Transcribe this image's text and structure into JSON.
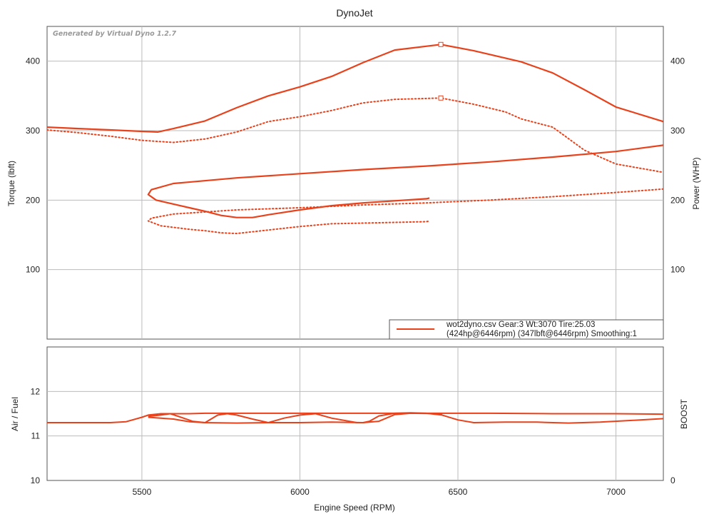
{
  "chart_data": [
    {
      "type": "line",
      "title": "DynoJet",
      "watermark": "Generated by Virtual Dyno 1.2.7",
      "xlabel": "Engine Speed (RPM)",
      "ylabel": "Torque (lbft)",
      "y2label": "Power (WHP)",
      "xlim": [
        5200,
        7150
      ],
      "ylim": [
        0,
        450
      ],
      "y2lim": [
        0,
        450
      ],
      "x_ticks": [
        5500,
        6000,
        6500,
        7000
      ],
      "y_ticks": [
        100,
        200,
        300,
        400
      ],
      "y2_ticks": [
        100,
        200,
        300,
        400
      ],
      "grid": true,
      "color": "#e8421c",
      "legend": {
        "position": "bottom-right",
        "line1": "wot2dyno.csv Gear:3 Wt:3070 Tire:25.03",
        "line2": "(424hp@6446rpm) (347lbft@6446rpm) Smoothing:1"
      },
      "series": [
        {
          "style": "solid",
          "axis": "power",
          "points": [
            [
              7150,
              279
            ],
            [
              7000,
              270
            ],
            [
              6800,
              262
            ],
            [
              6600,
              255
            ],
            [
              6400,
              249
            ],
            [
              6200,
              244
            ],
            [
              6000,
              238
            ],
            [
              5800,
              232
            ],
            [
              5600,
              224
            ],
            [
              5530,
              215
            ],
            [
              5520,
              208
            ],
            [
              5545,
              200
            ],
            [
              5650,
              189
            ],
            [
              5700,
              184
            ],
            [
              5750,
              178
            ],
            [
              5800,
              175
            ],
            [
              5850,
              175
            ],
            [
              5900,
              179
            ],
            [
              6000,
              186
            ],
            [
              6100,
              192
            ],
            [
              6200,
              196
            ],
            [
              6300,
              199
            ],
            [
              6400,
              202
            ],
            [
              6410,
              203
            ]
          ]
        },
        {
          "style": "dotted",
          "axis": "torque",
          "points": [
            [
              7150,
              216
            ],
            [
              7000,
              211
            ],
            [
              6800,
              205
            ],
            [
              6600,
              200
            ],
            [
              6400,
              196
            ],
            [
              6200,
              193
            ],
            [
              6000,
              189
            ],
            [
              5800,
              186
            ],
            [
              5600,
              180
            ],
            [
              5530,
              174
            ],
            [
              5520,
              170
            ],
            [
              5560,
              163
            ],
            [
              5650,
              158
            ],
            [
              5700,
              156
            ],
            [
              5750,
              153
            ],
            [
              5800,
              152
            ],
            [
              5900,
              157
            ],
            [
              6000,
              162
            ],
            [
              6100,
              166
            ],
            [
              6200,
              167
            ],
            [
              6300,
              168
            ],
            [
              6400,
              169
            ],
            [
              6410,
              170
            ]
          ]
        },
        {
          "style": "solid",
          "axis": "power",
          "marker_at": 6446,
          "points": [
            [
              5200,
              305
            ],
            [
              5300,
              303
            ],
            [
              5400,
              301
            ],
            [
              5500,
              299
            ],
            [
              5550,
              298
            ],
            [
              5600,
              303
            ],
            [
              5700,
              314
            ],
            [
              5800,
              333
            ],
            [
              5900,
              350
            ],
            [
              6000,
              363
            ],
            [
              6100,
              378
            ],
            [
              6200,
              398
            ],
            [
              6300,
              416
            ],
            [
              6446,
              424
            ],
            [
              6550,
              415
            ],
            [
              6700,
              399
            ],
            [
              6800,
              383
            ],
            [
              6900,
              359
            ],
            [
              7000,
              334
            ],
            [
              7150,
              313
            ]
          ]
        },
        {
          "style": "dotted",
          "axis": "torque",
          "marker_at": 6446,
          "points": [
            [
              5200,
              301
            ],
            [
              5300,
              297
            ],
            [
              5400,
              292
            ],
            [
              5500,
              286
            ],
            [
              5600,
              283
            ],
            [
              5700,
              288
            ],
            [
              5800,
              298
            ],
            [
              5900,
              313
            ],
            [
              6000,
              320
            ],
            [
              6100,
              329
            ],
            [
              6200,
              340
            ],
            [
              6300,
              345
            ],
            [
              6446,
              347
            ],
            [
              6550,
              338
            ],
            [
              6650,
              327
            ],
            [
              6700,
              317
            ],
            [
              6800,
              305
            ],
            [
              6900,
              272
            ],
            [
              7000,
              252
            ],
            [
              7150,
              240
            ]
          ]
        }
      ]
    },
    {
      "type": "line",
      "ylabel": "Air / Fuel",
      "y2label": "BOOST",
      "xlim": [
        5200,
        7150
      ],
      "ylim": [
        10,
        13
      ],
      "y_ticks": [
        10,
        11,
        12
      ],
      "y2_ticks": [
        0
      ],
      "grid": true,
      "color": "#e8421c",
      "series": [
        {
          "style": "solid",
          "points": [
            [
              5200,
              11.3
            ],
            [
              5300,
              11.3
            ],
            [
              5400,
              11.3
            ],
            [
              5450,
              11.32
            ],
            [
              5500,
              11.42
            ],
            [
              5520,
              11.47
            ],
            [
              5560,
              11.5
            ],
            [
              5600,
              11.5
            ],
            [
              5650,
              11.5
            ],
            [
              5700,
              11.51
            ],
            [
              5800,
              11.51
            ],
            [
              6000,
              11.51
            ],
            [
              6200,
              11.51
            ],
            [
              6400,
              11.51
            ],
            [
              6600,
              11.51
            ],
            [
              6800,
              11.5
            ],
            [
              7000,
              11.5
            ],
            [
              7150,
              11.49
            ]
          ]
        },
        {
          "style": "solid",
          "points": [
            [
              7150,
              11.39
            ],
            [
              7050,
              11.35
            ],
            [
              6950,
              11.31
            ],
            [
              6850,
              11.29
            ],
            [
              6750,
              11.31
            ],
            [
              6650,
              11.31
            ],
            [
              6550,
              11.3
            ],
            [
              6500,
              11.36
            ],
            [
              6450,
              11.47
            ],
            [
              6400,
              11.51
            ],
            [
              6350,
              11.52
            ],
            [
              6300,
              11.51
            ],
            [
              6250,
              11.45
            ],
            [
              6220,
              11.33
            ],
            [
              6200,
              11.3
            ],
            [
              6180,
              11.3
            ],
            [
              6100,
              11.4
            ],
            [
              6050,
              11.5
            ],
            [
              6000,
              11.47
            ],
            [
              5950,
              11.4
            ],
            [
              5900,
              11.3
            ],
            [
              5850,
              11.38
            ],
            [
              5800,
              11.47
            ],
            [
              5770,
              11.5
            ],
            [
              5740,
              11.47
            ],
            [
              5700,
              11.3
            ],
            [
              5660,
              11.33
            ],
            [
              5620,
              11.43
            ],
            [
              5590,
              11.5
            ],
            [
              5560,
              11.47
            ],
            [
              5520,
              11.44
            ]
          ]
        },
        {
          "style": "solid",
          "points": [
            [
              5520,
              11.42
            ],
            [
              5600,
              11.38
            ],
            [
              5650,
              11.32
            ],
            [
              5700,
              11.3
            ],
            [
              5800,
              11.29
            ],
            [
              5900,
              11.3
            ],
            [
              6000,
              11.3
            ],
            [
              6100,
              11.31
            ],
            [
              6200,
              11.3
            ],
            [
              6250,
              11.33
            ],
            [
              6300,
              11.48
            ],
            [
              6350,
              11.51
            ],
            [
              6450,
              11.5
            ]
          ]
        }
      ]
    }
  ]
}
